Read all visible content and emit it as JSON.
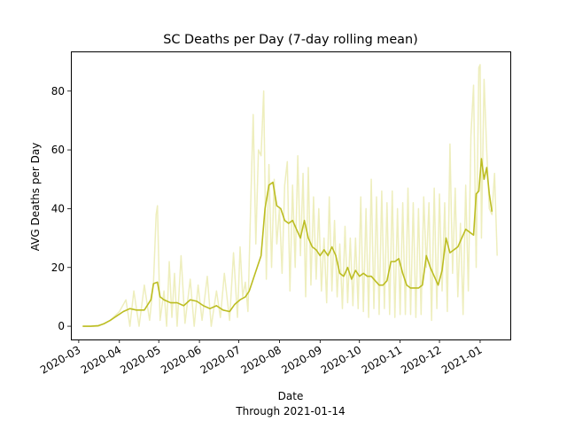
{
  "chart_data": {
    "type": "line",
    "title": "SC Deaths per Day (7-day rolling mean)",
    "xlabel": "Date",
    "xlabel_note": "Through 2021-01-14",
    "ylabel": "AVG Deaths per Day",
    "x_range": [
      "2020-02-24",
      "2021-01-24"
    ],
    "ylim": [
      -4.5,
      93.5
    ],
    "yticks": [
      0,
      20,
      40,
      60,
      80
    ],
    "xticks": [
      "2020-03",
      "2020-04",
      "2020-05",
      "2020-06",
      "2020-07",
      "2020-08",
      "2020-09",
      "2020-10",
      "2020-11",
      "2020-12",
      "2021-01"
    ],
    "grid": false,
    "colors": {
      "daily": "#eeeebd",
      "rolling": "#bcbd22"
    },
    "series": [
      {
        "role": "daily",
        "x": [
          "2020-03-04",
          "2020-03-16",
          "2020-03-25",
          "2020-04-01",
          "2020-04-06",
          "2020-04-09",
          "2020-04-12",
          "2020-04-16",
          "2020-04-20",
          "2020-04-24",
          "2020-04-27",
          "2020-04-29",
          "2020-04-30",
          "2020-05-02",
          "2020-05-05",
          "2020-05-07",
          "2020-05-09",
          "2020-05-11",
          "2020-05-13",
          "2020-05-15",
          "2020-05-18",
          "2020-05-21",
          "2020-05-25",
          "2020-05-28",
          "2020-05-31",
          "2020-06-03",
          "2020-06-07",
          "2020-06-10",
          "2020-06-14",
          "2020-06-17",
          "2020-06-20",
          "2020-06-24",
          "2020-06-27",
          "2020-06-30",
          "2020-07-02",
          "2020-07-04",
          "2020-07-06",
          "2020-07-08",
          "2020-07-10",
          "2020-07-12",
          "2020-07-14",
          "2020-07-16",
          "2020-07-18",
          "2020-07-20",
          "2020-07-22",
          "2020-07-24",
          "2020-07-26",
          "2020-07-28",
          "2020-07-30",
          "2020-08-01",
          "2020-08-03",
          "2020-08-05",
          "2020-08-07",
          "2020-08-09",
          "2020-08-11",
          "2020-08-13",
          "2020-08-15",
          "2020-08-17",
          "2020-08-19",
          "2020-08-21",
          "2020-08-23",
          "2020-08-25",
          "2020-08-27",
          "2020-08-29",
          "2020-08-31",
          "2020-09-02",
          "2020-09-04",
          "2020-09-06",
          "2020-09-08",
          "2020-09-10",
          "2020-09-12",
          "2020-09-14",
          "2020-09-16",
          "2020-09-18",
          "2020-09-20",
          "2020-09-22",
          "2020-09-24",
          "2020-09-26",
          "2020-09-28",
          "2020-09-30",
          "2020-10-02",
          "2020-10-04",
          "2020-10-06",
          "2020-10-08",
          "2020-10-10",
          "2020-10-12",
          "2020-10-14",
          "2020-10-16",
          "2020-10-18",
          "2020-10-20",
          "2020-10-22",
          "2020-10-24",
          "2020-10-26",
          "2020-10-28",
          "2020-10-30",
          "2020-11-01",
          "2020-11-03",
          "2020-11-05",
          "2020-11-07",
          "2020-11-09",
          "2020-11-11",
          "2020-11-13",
          "2020-11-15",
          "2020-11-17",
          "2020-11-19",
          "2020-11-21",
          "2020-11-23",
          "2020-11-25",
          "2020-11-27",
          "2020-11-29",
          "2020-12-01",
          "2020-12-03",
          "2020-12-05",
          "2020-12-07",
          "2020-12-09",
          "2020-12-11",
          "2020-12-13",
          "2020-12-15",
          "2020-12-17",
          "2020-12-19",
          "2020-12-21",
          "2020-12-23",
          "2020-12-25",
          "2020-12-27",
          "2020-12-29",
          "2020-12-31",
          "2021-01-01",
          "2021-01-02",
          "2021-01-04",
          "2021-01-06",
          "2021-01-08",
          "2021-01-10",
          "2021-01-12",
          "2021-01-14"
        ],
        "values": [
          0,
          0,
          2,
          5,
          9,
          0,
          12,
          0,
          14,
          2,
          15,
          38,
          41,
          2,
          12,
          0,
          22,
          3,
          18,
          0,
          24,
          1,
          16,
          0,
          14,
          2,
          17,
          0,
          12,
          3,
          18,
          2,
          25,
          3,
          27,
          10,
          15,
          5,
          40,
          72,
          28,
          60,
          58,
          80,
          16,
          55,
          20,
          50,
          28,
          40,
          18,
          48,
          56,
          12,
          48,
          20,
          58,
          24,
          52,
          10,
          54,
          14,
          44,
          16,
          40,
          12,
          30,
          8,
          44,
          12,
          36,
          10,
          28,
          6,
          34,
          8,
          30,
          7,
          30,
          6,
          44,
          5,
          40,
          3,
          50,
          6,
          44,
          4,
          46,
          6,
          42,
          4,
          46,
          3,
          40,
          4,
          42,
          4,
          47,
          4,
          42,
          3,
          40,
          4,
          44,
          20,
          42,
          2,
          47,
          6,
          45,
          12,
          42,
          5,
          62,
          18,
          47,
          10,
          35,
          4,
          48,
          12,
          65,
          82,
          20,
          88,
          89,
          30,
          84,
          60,
          40,
          38,
          52,
          24
        ]
      },
      {
        "role": "rolling",
        "x": [
          "2020-03-04",
          "2020-03-10",
          "2020-03-16",
          "2020-03-20",
          "2020-03-25",
          "2020-03-30",
          "2020-04-04",
          "2020-04-09",
          "2020-04-14",
          "2020-04-20",
          "2020-04-25",
          "2020-04-27",
          "2020-04-30",
          "2020-05-02",
          "2020-05-05",
          "2020-05-10",
          "2020-05-15",
          "2020-05-20",
          "2020-05-25",
          "2020-05-30",
          "2020-06-04",
          "2020-06-09",
          "2020-06-14",
          "2020-06-19",
          "2020-06-24",
          "2020-06-28",
          "2020-07-02",
          "2020-07-06",
          "2020-07-09",
          "2020-07-12",
          "2020-07-15",
          "2020-07-18",
          "2020-07-21",
          "2020-07-24",
          "2020-07-27",
          "2020-07-30",
          "2020-08-02",
          "2020-08-05",
          "2020-08-08",
          "2020-08-11",
          "2020-08-14",
          "2020-08-17",
          "2020-08-20",
          "2020-08-23",
          "2020-08-26",
          "2020-08-29",
          "2020-09-01",
          "2020-09-04",
          "2020-09-07",
          "2020-09-10",
          "2020-09-13",
          "2020-09-16",
          "2020-09-19",
          "2020-09-22",
          "2020-09-25",
          "2020-09-28",
          "2020-10-01",
          "2020-10-04",
          "2020-10-07",
          "2020-10-10",
          "2020-10-13",
          "2020-10-16",
          "2020-10-19",
          "2020-10-22",
          "2020-10-25",
          "2020-10-28",
          "2020-10-31",
          "2020-11-03",
          "2020-11-06",
          "2020-11-09",
          "2020-11-12",
          "2020-11-15",
          "2020-11-18",
          "2020-11-21",
          "2020-11-24",
          "2020-11-27",
          "2020-11-30",
          "2020-12-03",
          "2020-12-06",
          "2020-12-09",
          "2020-12-12",
          "2020-12-15",
          "2020-12-18",
          "2020-12-21",
          "2020-12-24",
          "2020-12-27",
          "2020-12-29",
          "2020-12-31",
          "2021-01-02",
          "2021-01-04",
          "2021-01-06",
          "2021-01-08",
          "2021-01-10"
        ],
        "values": [
          0,
          0,
          0.2,
          0.8,
          2,
          3.5,
          5,
          6,
          5.5,
          5.5,
          9,
          14.5,
          15,
          10,
          9,
          8,
          8,
          7,
          9,
          8.5,
          7,
          6,
          7,
          5.5,
          5,
          7.5,
          9,
          10,
          12,
          16,
          20,
          24,
          40,
          48,
          49,
          41,
          40,
          36,
          35,
          36,
          33,
          30,
          36,
          30,
          27,
          26,
          24,
          26,
          24,
          27,
          24,
          18,
          17,
          20,
          16,
          19,
          17,
          18,
          17,
          17,
          15.5,
          14,
          14,
          15.5,
          22,
          22,
          23,
          18,
          14,
          13,
          13,
          13,
          14,
          24,
          20,
          17,
          14,
          19,
          30,
          25,
          26,
          27,
          30,
          33,
          32,
          31,
          45,
          46,
          57,
          50,
          54,
          45,
          39
        ]
      }
    ]
  }
}
